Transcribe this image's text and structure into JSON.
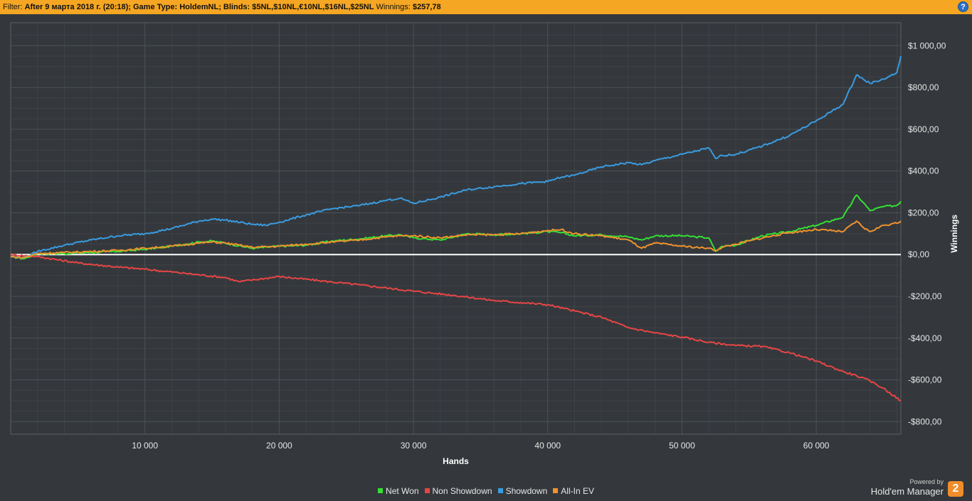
{
  "filter": {
    "label": "Filter:",
    "text": "After 9 марта 2018 г. (20:18); Game Type: HoldemNL; Blinds: $5NL,$10NL,€10NL,$16NL,$25NL",
    "winnings_label": "Winnings:",
    "winnings_value": "$257,78",
    "help_icon": "question-circle-icon",
    "help_text": "?"
  },
  "brand": {
    "powered_by": "Powered by",
    "name": "Hold'em Manager",
    "logo_text": "2",
    "logo_color": "#f08c2a"
  },
  "chart_data": {
    "type": "line",
    "xlabel": "Hands",
    "ylabel": "Winnings",
    "xlim": [
      0,
      66300
    ],
    "ylim": [
      -860,
      1110
    ],
    "x_ticks": [
      10000,
      20000,
      30000,
      40000,
      50000,
      60000
    ],
    "x_tick_labels": [
      "10 000",
      "20 000",
      "30 000",
      "40 000",
      "50 000",
      "60 000"
    ],
    "y_ticks": [
      1000,
      800,
      600,
      400,
      200,
      0,
      -200,
      -400,
      -600,
      -800
    ],
    "y_tick_labels": [
      "$1 000,00",
      "$800,00",
      "$600,00",
      "$400,00",
      "$200,00",
      "$0,00",
      "-$200,00",
      "-$400,00",
      "-$600,00",
      "-$800,00"
    ],
    "y_axis_position": "right",
    "grid": true,
    "zero_line": true,
    "legend_position": "bottom-center",
    "series": [
      {
        "name": "Net Won",
        "color": "#33e033",
        "x": [
          0,
          1000,
          2000,
          4000,
          6000,
          8000,
          10000,
          12000,
          14000,
          15000,
          16000,
          18000,
          20000,
          22000,
          24000,
          26000,
          28000,
          29000,
          30000,
          32000,
          34000,
          36000,
          38000,
          40000,
          41000,
          42000,
          44000,
          46000,
          47000,
          48000,
          50000,
          51000,
          52000,
          52500,
          53000,
          54000,
          56000,
          58000,
          60000,
          62000,
          63000,
          63500,
          64000,
          65000,
          66000,
          66300
        ],
        "y": [
          -10,
          -20,
          5,
          5,
          10,
          15,
          25,
          40,
          60,
          65,
          55,
          30,
          40,
          45,
          65,
          75,
          90,
          95,
          80,
          70,
          100,
          95,
          100,
          110,
          105,
          90,
          95,
          85,
          70,
          90,
          90,
          85,
          80,
          15,
          40,
          45,
          90,
          110,
          140,
          180,
          285,
          250,
          210,
          230,
          235,
          255
        ]
      },
      {
        "name": "Non Showdown",
        "color": "#e84545",
        "x": [
          0,
          2000,
          5000,
          8000,
          10000,
          13000,
          16000,
          17000,
          20000,
          23000,
          26000,
          28000,
          30000,
          33000,
          36000,
          38000,
          40000,
          42000,
          44000,
          46000,
          48000,
          50000,
          52000,
          54000,
          56000,
          58000,
          60000,
          62000,
          63000,
          64000,
          65000,
          66300
        ],
        "y": [
          0,
          -10,
          -40,
          -60,
          -70,
          -90,
          -110,
          -130,
          -105,
          -125,
          -145,
          -160,
          -175,
          -195,
          -220,
          -230,
          -240,
          -270,
          -300,
          -350,
          -375,
          -395,
          -420,
          -435,
          -440,
          -470,
          -510,
          -560,
          -580,
          -605,
          -640,
          -700
        ]
      },
      {
        "name": "Showdown",
        "color": "#3a9be0",
        "x": [
          0,
          1000,
          2000,
          4000,
          6000,
          8000,
          10000,
          12000,
          14000,
          15000,
          16000,
          18000,
          19000,
          20000,
          22000,
          24000,
          26000,
          28000,
          29000,
          30000,
          32000,
          34000,
          36000,
          38000,
          40000,
          41000,
          42000,
          44000,
          46000,
          47000,
          48000,
          50000,
          52000,
          52500,
          53000,
          54000,
          56000,
          58000,
          60000,
          62000,
          63000,
          63500,
          64000,
          65000,
          66000,
          66300
        ],
        "y": [
          -10,
          -15,
          15,
          45,
          70,
          90,
          100,
          125,
          160,
          170,
          165,
          145,
          140,
          155,
          190,
          220,
          235,
          260,
          270,
          245,
          275,
          310,
          325,
          340,
          350,
          370,
          380,
          420,
          440,
          430,
          450,
          480,
          510,
          460,
          475,
          480,
          520,
          570,
          640,
          720,
          860,
          840,
          820,
          840,
          870,
          950
        ]
      },
      {
        "name": "All-In EV",
        "color": "#f0922e",
        "x": [
          0,
          1000,
          2000,
          4000,
          6000,
          8000,
          10000,
          12000,
          14000,
          15000,
          16000,
          18000,
          20000,
          22000,
          24000,
          26000,
          28000,
          29000,
          30000,
          32000,
          34000,
          36000,
          38000,
          40000,
          41000,
          42000,
          44000,
          46000,
          47000,
          48000,
          50000,
          51000,
          52000,
          52500,
          53000,
          54000,
          56000,
          58000,
          60000,
          62000,
          63000,
          63500,
          64000,
          65000,
          66000,
          66300
        ],
        "y": [
          -10,
          -15,
          5,
          10,
          15,
          20,
          30,
          40,
          55,
          60,
          55,
          35,
          40,
          50,
          60,
          70,
          85,
          90,
          90,
          80,
          95,
          95,
          100,
          115,
          120,
          100,
          90,
          70,
          30,
          55,
          40,
          35,
          30,
          20,
          35,
          50,
          80,
          105,
          120,
          110,
          160,
          130,
          110,
          140,
          150,
          160
        ]
      }
    ]
  }
}
